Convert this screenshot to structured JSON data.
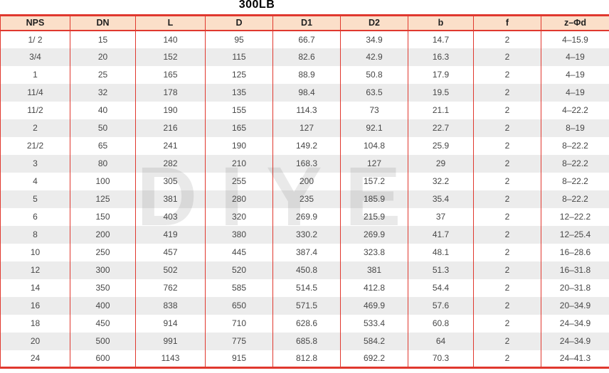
{
  "title": "300LB",
  "watermark": {
    "text": "DIYE"
  },
  "colors": {
    "border_red": "#e0382e",
    "header_bg": "#fbdfc9",
    "row_alt_bg": "#ececec",
    "text": "#474747"
  },
  "table": {
    "columns": [
      "NPS",
      "DN",
      "L",
      "D",
      "D1",
      "D2",
      "b",
      "f",
      "z–Φd"
    ],
    "rows": [
      [
        "1/ 2",
        "15",
        "140",
        "95",
        "66.7",
        "34.9",
        "14.7",
        "2",
        "4–15.9"
      ],
      [
        "3/4",
        "20",
        "152",
        "115",
        "82.6",
        "42.9",
        "16.3",
        "2",
        "4–19"
      ],
      [
        "1",
        "25",
        "165",
        "125",
        "88.9",
        "50.8",
        "17.9",
        "2",
        "4–19"
      ],
      [
        "11/4",
        "32",
        "178",
        "135",
        "98.4",
        "63.5",
        "19.5",
        "2",
        "4–19"
      ],
      [
        "11/2",
        "40",
        "190",
        "155",
        "114.3",
        "73",
        "21.1",
        "2",
        "4–22.2"
      ],
      [
        "2",
        "50",
        "216",
        "165",
        "127",
        "92.1",
        "22.7",
        "2",
        "8–19"
      ],
      [
        "21/2",
        "65",
        "241",
        "190",
        "149.2",
        "104.8",
        "25.9",
        "2",
        "8–22.2"
      ],
      [
        "3",
        "80",
        "282",
        "210",
        "168.3",
        "127",
        "29",
        "2",
        "8–22.2"
      ],
      [
        "4",
        "100",
        "305",
        "255",
        "200",
        "157.2",
        "32.2",
        "2",
        "8–22.2"
      ],
      [
        "5",
        "125",
        "381",
        "280",
        "235",
        "185.9",
        "35.4",
        "2",
        "8–22.2"
      ],
      [
        "6",
        "150",
        "403",
        "320",
        "269.9",
        "215.9",
        "37",
        "2",
        "12–22.2"
      ],
      [
        "8",
        "200",
        "419",
        "380",
        "330.2",
        "269.9",
        "41.7",
        "2",
        "12–25.4"
      ],
      [
        "10",
        "250",
        "457",
        "445",
        "387.4",
        "323.8",
        "48.1",
        "2",
        "16–28.6"
      ],
      [
        "12",
        "300",
        "502",
        "520",
        "450.8",
        "381",
        "51.3",
        "2",
        "16–31.8"
      ],
      [
        "14",
        "350",
        "762",
        "585",
        "514.5",
        "412.8",
        "54.4",
        "2",
        "20–31.8"
      ],
      [
        "16",
        "400",
        "838",
        "650",
        "571.5",
        "469.9",
        "57.6",
        "2",
        "20–34.9"
      ],
      [
        "18",
        "450",
        "914",
        "710",
        "628.6",
        "533.4",
        "60.8",
        "2",
        "24–34.9"
      ],
      [
        "20",
        "500",
        "991",
        "775",
        "685.8",
        "584.2",
        "64",
        "2",
        "24–34.9"
      ],
      [
        "24",
        "600",
        "1143",
        "915",
        "812.8",
        "692.2",
        "70.3",
        "2",
        "24–41.3"
      ]
    ]
  }
}
